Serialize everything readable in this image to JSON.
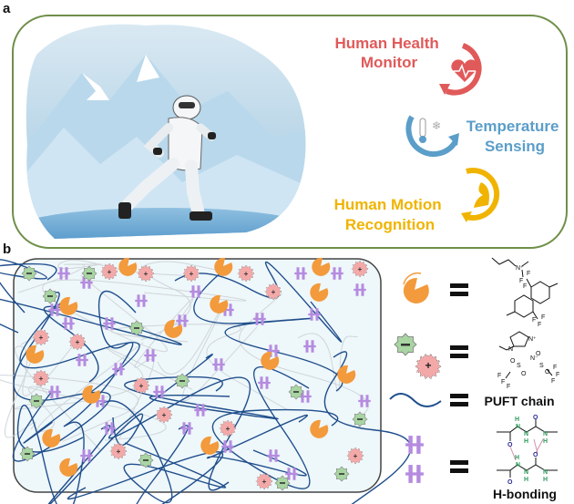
{
  "panel_a": {
    "label": "a",
    "applications": [
      {
        "text_lines": [
          "Human Health",
          "Monitor"
        ],
        "color": "#e05a5a",
        "icon": "heart-pulse-icon"
      },
      {
        "text_lines": [
          "Temperature",
          "Sensing"
        ],
        "color": "#5b9ec9",
        "icon": "thermometer-snowflake-icon"
      },
      {
        "text_lines": [
          "Human Motion",
          "Recognition"
        ],
        "color": "#f0b400",
        "icon": "flexed-arm-icon"
      }
    ],
    "border_color": "#6f8f4a"
  },
  "panel_b": {
    "label": "b",
    "legend": [
      {
        "symbol": "ammonium-cation-pacman",
        "equals": "=",
        "structure_text": [
          "N⁺",
          "F",
          "F",
          "F",
          "F",
          "F",
          "F"
        ]
      },
      {
        "symbol": "ionic-liquid-ions",
        "equals": "=",
        "structure_text": [
          "N⁺",
          "N",
          "N⁻",
          "S",
          "S",
          "O",
          "O",
          "O",
          "O",
          "F",
          "F",
          "F",
          "F",
          "F",
          "F"
        ]
      },
      {
        "symbol": "polymer-chain",
        "equals": "=",
        "text": "PUFT chain"
      },
      {
        "symbol": "h-bond-pairs",
        "equals": "=",
        "structure_text": [
          "H",
          "N",
          "N",
          "H",
          "O",
          "N",
          "H",
          "O",
          "H",
          "N",
          "N",
          "H",
          "O",
          "N",
          "H",
          "O"
        ],
        "text": "H-bonding"
      }
    ],
    "colors": {
      "cation": "#f39a3c",
      "anion": "#a8d5a2",
      "positive_ion": "#f4a9a9",
      "chain": "#1f4e8c",
      "hbond": "#b58be0",
      "hbond_link": "#d48fae",
      "h_atom": "#2e9a5a",
      "o_atom": "#2a2a9a"
    }
  }
}
